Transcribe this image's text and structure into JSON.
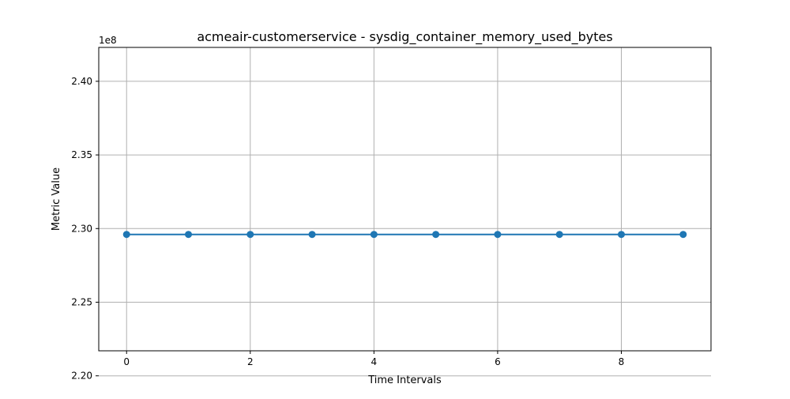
{
  "chart_data": {
    "type": "line",
    "title": "acmeair-customerservice - sysdig_container_memory_used_bytes",
    "xlabel": "Time Intervals",
    "ylabel": "Metric Value",
    "y_offset_label": "1e8",
    "x": [
      0,
      1,
      2,
      3,
      4,
      5,
      6,
      7,
      8,
      9
    ],
    "series": [
      {
        "values": [
          229600000,
          229600000,
          229600000,
          229600000,
          229600000,
          229600000,
          229600000,
          229600000,
          229600000,
          229600000
        ],
        "color": "#1f77b4"
      }
    ],
    "xlim": [
      -0.45,
      9.45
    ],
    "ylim": [
      221700000,
      242300000
    ],
    "x_ticks": [
      0,
      2,
      4,
      6,
      8
    ],
    "x_tick_labels": [
      "0",
      "2",
      "4",
      "6",
      "8"
    ],
    "y_ticks": [
      220000000,
      225000000,
      230000000,
      235000000,
      240000000
    ],
    "y_tick_labels": [
      "2.20",
      "2.25",
      "2.30",
      "2.35",
      "2.40"
    ],
    "grid": true,
    "legend": false,
    "colors": {
      "grid": "#b0b0b0",
      "axes": "#000000",
      "line": "#1f77b4"
    }
  }
}
